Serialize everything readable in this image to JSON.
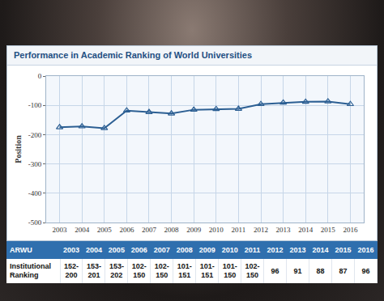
{
  "chart_data": {
    "type": "line",
    "title": "Performance in Academic Ranking of World Universities",
    "ylabel": "Position",
    "x": [
      2003,
      2004,
      2005,
      2006,
      2007,
      2008,
      2009,
      2010,
      2011,
      2012,
      2013,
      2014,
      2015,
      2016
    ],
    "values": [
      -175,
      -172,
      -178,
      -118,
      -123,
      -128,
      -115,
      -113,
      -112,
      -96,
      -91,
      -88,
      -87,
      -96
    ],
    "color": "#2c5f93",
    "marker": "triangle-up",
    "xlim": [
      2002.4,
      2016.6
    ],
    "xticks": [
      2003,
      2004,
      2005,
      2006,
      2007,
      2008,
      2009,
      2010,
      2011,
      2012,
      2013,
      2014,
      2015,
      2016
    ],
    "ylim": [
      -500,
      0
    ],
    "yticks": [
      -500,
      -400,
      -300,
      -200,
      -100,
      0
    ],
    "grid": true
  },
  "table": {
    "header": [
      "ARWU",
      "2003",
      "2004",
      "2005",
      "2006",
      "2007",
      "2008",
      "2009",
      "2010",
      "2011",
      "2012",
      "2013",
      "2014",
      "2015",
      "2016"
    ],
    "rows": [
      [
        "Institutional Ranking",
        "152-200",
        "153-201",
        "153-202",
        "102-150",
        "102-150",
        "101-151",
        "101-151",
        "101-150",
        "102-150",
        "96",
        "91",
        "88",
        "87",
        "96"
      ]
    ]
  }
}
